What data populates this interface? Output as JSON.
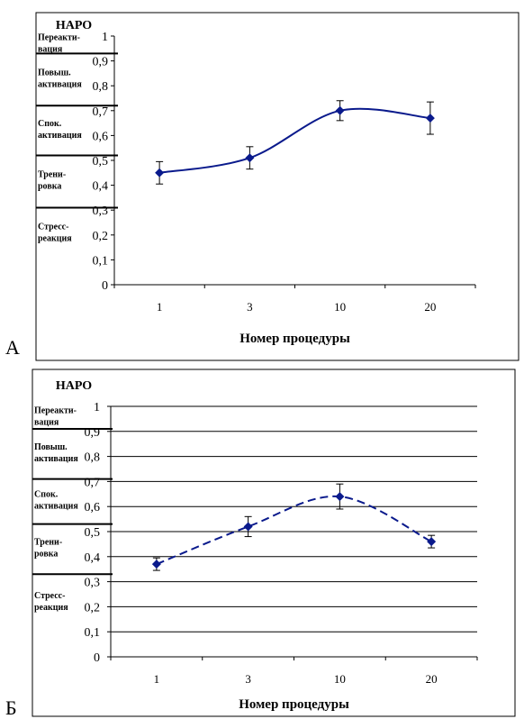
{
  "panel_labels": [
    "А",
    "Б"
  ],
  "chart_data": [
    {
      "type": "line",
      "panel": "А",
      "title": "НАРО",
      "xlabel": "Номер процедуры",
      "ylabel": "НАРО",
      "categories": [
        "1",
        "3",
        "10",
        "20"
      ],
      "y_ticks": [
        "0",
        "0,1",
        "0,2",
        "0,3",
        "0,4",
        "0,5",
        "0,6",
        "0,7",
        "0,8",
        "0,9",
        "1"
      ],
      "ylim": [
        0,
        1
      ],
      "grid": false,
      "line_style": "solid",
      "smoothed": true,
      "series_color": "#0a1a8c",
      "series": [
        {
          "values": [
            0.45,
            0.51,
            0.7,
            0.67
          ],
          "errors": [
            0.045,
            0.045,
            0.04,
            0.065
          ]
        }
      ],
      "zones": [
        {
          "label": [
            "Переакти-",
            "вация"
          ],
          "bound": 0.93
        },
        {
          "label": [
            "Повыш.",
            "активация"
          ],
          "bound": 0.72
        },
        {
          "label": [
            "Спок.",
            "активация"
          ],
          "bound": 0.52
        },
        {
          "label": [
            "Трени-",
            "ровка"
          ],
          "bound": 0.31
        },
        {
          "label": [
            "Стресс-",
            "реакция"
          ],
          "bound": null
        }
      ]
    },
    {
      "type": "line",
      "panel": "Б",
      "title": "НАРО",
      "xlabel": "Номер процедуры",
      "ylabel": "НАРО",
      "categories": [
        "1",
        "3",
        "10",
        "20"
      ],
      "y_ticks": [
        "0",
        "0,1",
        "0,2",
        "0,3",
        "0,4",
        "0,5",
        "0,6",
        "0,7",
        "0,8",
        "0,9",
        "1"
      ],
      "ylim": [
        0,
        1
      ],
      "grid": true,
      "line_style": "dashed",
      "smoothed": true,
      "series_color": "#0a1a8c",
      "series": [
        {
          "values": [
            0.37,
            0.52,
            0.64,
            0.46
          ],
          "errors": [
            0.025,
            0.04,
            0.05,
            0.025
          ]
        }
      ],
      "zones": [
        {
          "label": [
            "Переакти-",
            "вация"
          ],
          "bound": 0.91
        },
        {
          "label": [
            "Повыш.",
            "активация"
          ],
          "bound": 0.71
        },
        {
          "label": [
            "Спок.",
            "активация"
          ],
          "bound": 0.53
        },
        {
          "label": [
            "Трени-",
            "ровка"
          ],
          "bound": 0.33
        },
        {
          "label": [
            "Стресс-",
            "реакция"
          ],
          "bound": null
        }
      ]
    }
  ]
}
